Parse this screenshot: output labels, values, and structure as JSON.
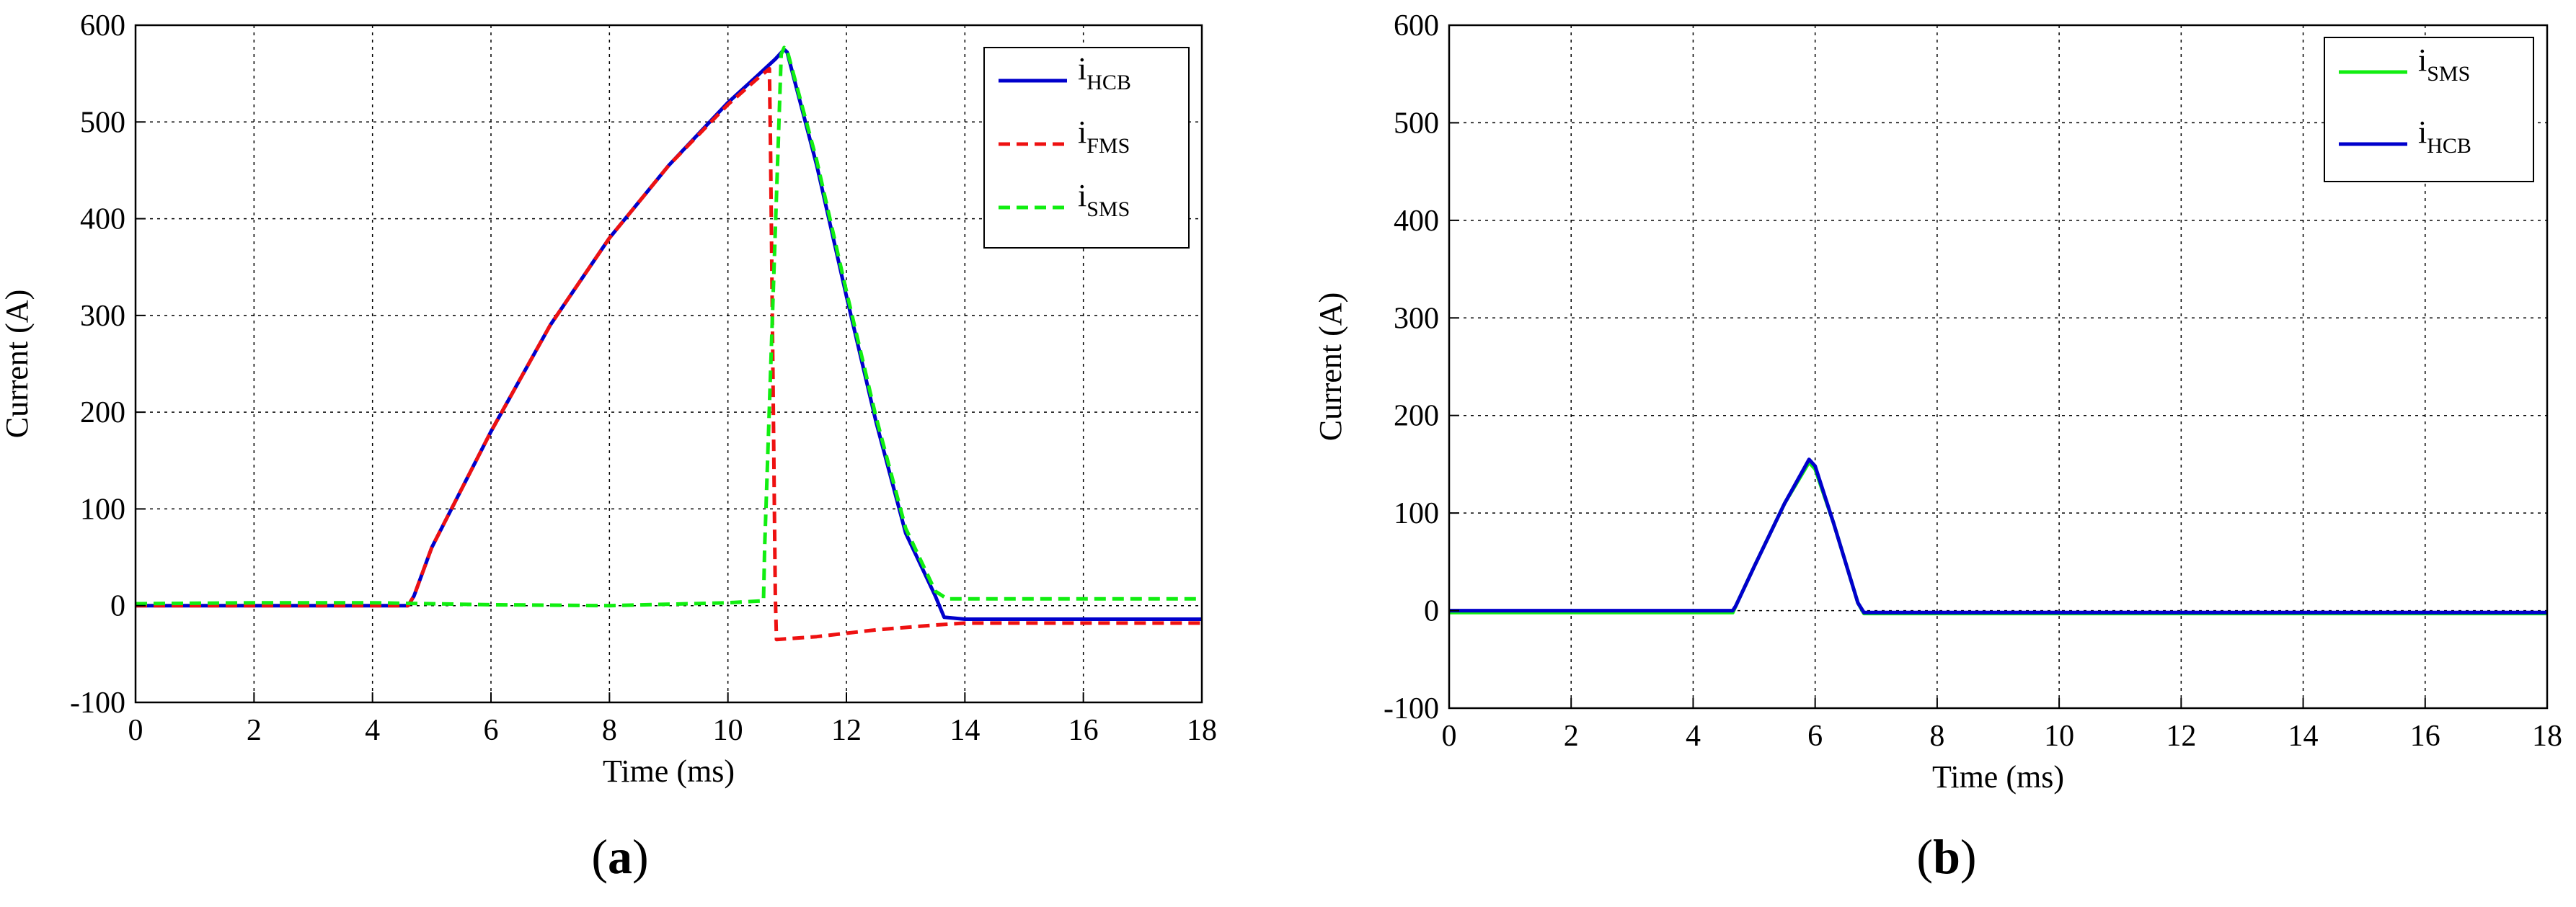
{
  "chart_data": [
    {
      "type": "line",
      "panel_label": "(a)",
      "panel_letter": "a",
      "xlabel": "Time (ms)",
      "ylabel": "Current (A)",
      "xlim": [
        0,
        18
      ],
      "ylim": [
        -100,
        600
      ],
      "xticks": [
        0,
        2,
        4,
        6,
        8,
        10,
        12,
        14,
        16,
        18
      ],
      "yticks": [
        -100,
        0,
        100,
        200,
        300,
        400,
        500,
        600
      ],
      "grid": true,
      "legend_position": "top-right",
      "series": [
        {
          "name": "i_HCB",
          "base": "i",
          "sub": "HCB",
          "color": "#0000CC",
          "dash": "solid",
          "x": [
            0,
            4.6,
            4.7,
            5.0,
            6.0,
            7.0,
            8.0,
            9.0,
            10.0,
            10.5,
            10.8,
            10.95,
            11.0,
            11.5,
            12.0,
            12.5,
            13.0,
            13.5,
            13.65,
            14.0,
            16.0,
            18.0
          ],
          "y": [
            0,
            0,
            10,
            60,
            180,
            290,
            380,
            455,
            520,
            548,
            565,
            575,
            572,
            455,
            320,
            190,
            75,
            10,
            -12,
            -14,
            -14,
            -14
          ]
        },
        {
          "name": "i_FMS",
          "base": "i",
          "sub": "FMS",
          "color": "#EE1111",
          "dash": "dashed",
          "x": [
            0,
            4.6,
            4.7,
            5.0,
            6.0,
            7.0,
            8.0,
            9.0,
            10.0,
            10.5,
            10.7,
            10.72,
            10.8,
            10.82,
            11.5,
            12.5,
            13.5,
            14.0,
            16.0,
            18.0
          ],
          "y": [
            0,
            0,
            10,
            60,
            180,
            290,
            380,
            455,
            518,
            545,
            555,
            470,
            10,
            -35,
            -32,
            -25,
            -20,
            -18,
            -18,
            -18
          ]
        },
        {
          "name": "i_SMS",
          "base": "i",
          "sub": "SMS",
          "color": "#11EE11",
          "dash": "dashed",
          "x": [
            0,
            2.0,
            4.0,
            6.0,
            8.0,
            10.0,
            10.6,
            10.62,
            10.9,
            10.95,
            11.0,
            11.5,
            12.0,
            12.5,
            13.0,
            13.5,
            13.7,
            14.0,
            16.0,
            18.0
          ],
          "y": [
            2,
            3,
            3,
            1,
            0,
            3,
            5,
            60,
            570,
            577,
            574,
            460,
            325,
            195,
            80,
            15,
            7,
            7,
            7,
            7
          ]
        }
      ]
    },
    {
      "type": "line",
      "panel_label": "(b)",
      "panel_letter": "b",
      "xlabel": "Time (ms)",
      "ylabel": "Current (A)",
      "xlim": [
        0,
        18
      ],
      "ylim": [
        -100,
        600
      ],
      "xticks": [
        0,
        2,
        4,
        6,
        8,
        10,
        12,
        14,
        16,
        18
      ],
      "yticks": [
        -100,
        0,
        100,
        200,
        300,
        400,
        500,
        600
      ],
      "grid": true,
      "legend_position": "top-right",
      "series": [
        {
          "name": "i_SMS",
          "base": "i",
          "sub": "SMS",
          "color": "#11EE11",
          "dash": "solid",
          "x": [
            0,
            2,
            4,
            4.65,
            4.7,
            5.0,
            5.5,
            5.9,
            6.0,
            6.3,
            6.7,
            6.8,
            8,
            10,
            12,
            14,
            16,
            18
          ],
          "y": [
            -2,
            -2,
            -2,
            -2,
            5,
            45,
            110,
            152,
            145,
            90,
            8,
            -3,
            -3,
            -3,
            -3,
            -3,
            -3,
            -3
          ]
        },
        {
          "name": "i_HCB",
          "base": "i",
          "sub": "HCB",
          "color": "#0000CC",
          "dash": "solid",
          "x": [
            0,
            2,
            4,
            4.65,
            4.7,
            5.0,
            5.5,
            5.9,
            6.0,
            6.3,
            6.7,
            6.8,
            8,
            10,
            12,
            14,
            16,
            18
          ],
          "y": [
            0,
            0,
            0,
            0,
            5,
            45,
            110,
            155,
            148,
            90,
            8,
            -2,
            -2,
            -2,
            -2,
            -2,
            -2,
            -2
          ]
        }
      ]
    }
  ]
}
